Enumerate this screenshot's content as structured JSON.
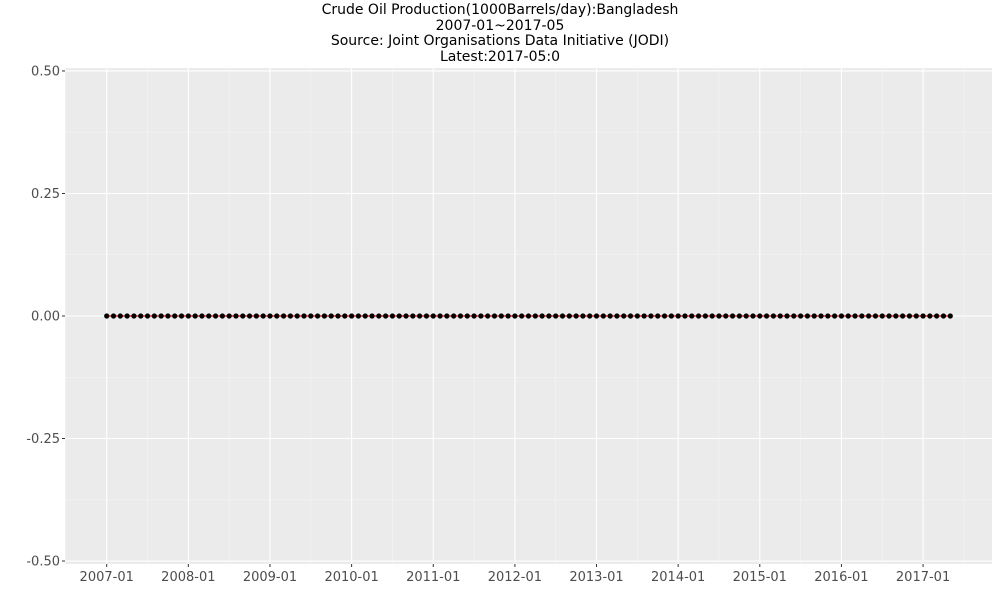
{
  "chart_data": {
    "type": "line",
    "title": "Crude Oil Production(1000Barrels/day):Bangladesh",
    "subtitle_lines": [
      "2007-01~2017-05",
      "Source: Joint Organisations Data Initiative (JODI)",
      "Latest:2017-05:0"
    ],
    "xlabel": "",
    "ylabel": "",
    "x_start": "2007-01",
    "x_end": "2017-05",
    "x_ticks": [
      "2007-01",
      "2008-01",
      "2009-01",
      "2010-01",
      "2011-01",
      "2012-01",
      "2013-01",
      "2014-01",
      "2015-01",
      "2016-01",
      "2017-01"
    ],
    "y_ticks": [
      "0.50",
      "0.25",
      "0.00",
      "-0.25",
      "-0.50"
    ],
    "ylim": [
      -0.5,
      0.5
    ],
    "grid": true,
    "series": [
      {
        "line_color": "#ff0000",
        "marker_color": "#000000",
        "constant_value": 0
      }
    ]
  }
}
